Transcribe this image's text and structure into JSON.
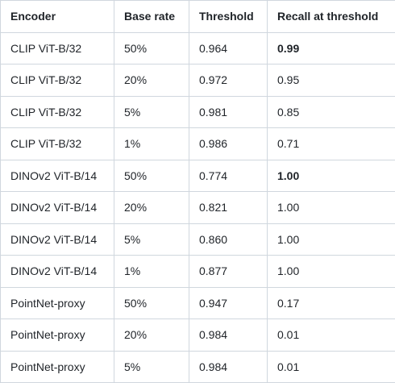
{
  "table": {
    "header": [
      "Encoder",
      "Base rate",
      "Threshold",
      "Recall at threshold"
    ],
    "rows": [
      [
        "CLIP ViT-B/32",
        "50%",
        "0.964",
        "0.99"
      ],
      [
        "CLIP ViT-B/32",
        "20%",
        "0.972",
        "0.95"
      ],
      [
        "CLIP ViT-B/32",
        "5%",
        "0.981",
        "0.85"
      ],
      [
        "CLIP ViT-B/32",
        "1%",
        "0.986",
        "0.71"
      ],
      [
        "DINOv2 ViT-B/14",
        "50%",
        "0.774",
        "1.00"
      ],
      [
        "DINOv2 ViT-B/14",
        "20%",
        "0.821",
        "1.00"
      ],
      [
        "DINOv2 ViT-B/14",
        "5%",
        "0.860",
        "1.00"
      ],
      [
        "DINOv2 ViT-B/14",
        "1%",
        "0.877",
        "1.00"
      ],
      [
        "PointNet-proxy",
        "50%",
        "0.947",
        "0.17"
      ],
      [
        "PointNet-proxy",
        "20%",
        "0.984",
        "0.01"
      ],
      [
        "PointNet-proxy",
        "5%",
        "0.984",
        "0.01"
      ]
    ]
  }
}
